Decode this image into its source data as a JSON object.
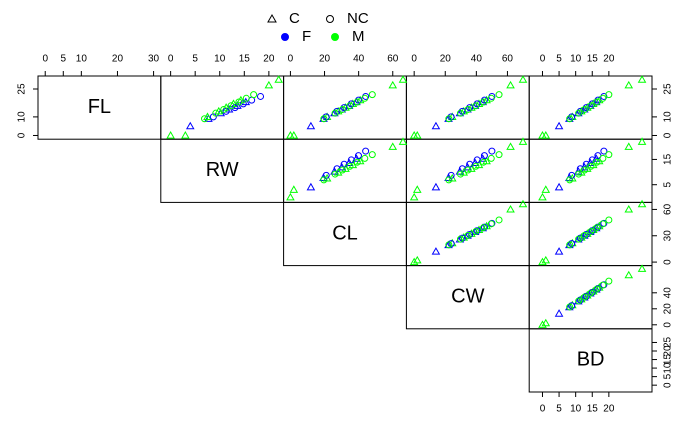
{
  "chart_data": {
    "type": "scatter-matrix",
    "legend": [
      {
        "name": "C",
        "shape": "triangle"
      },
      {
        "name": "NC",
        "shape": "circle"
      },
      {
        "name": "F",
        "color": "#0000ff"
      },
      {
        "name": "M",
        "color": "#00ff00"
      }
    ],
    "species": [
      "C",
      "C",
      "C",
      "C",
      "C",
      "C",
      "C",
      "C",
      "C",
      "C",
      "NC",
      "NC",
      "NC",
      "NC",
      "NC",
      "NC",
      "NC",
      "NC",
      "NC",
      "NC",
      "NC",
      "NC",
      "NC",
      "C",
      "C",
      "C",
      "C",
      "C"
    ],
    "sex": [
      "F",
      "F",
      "F",
      "F",
      "F",
      "M",
      "M",
      "M",
      "M",
      "M",
      "F",
      "F",
      "F",
      "F",
      "F",
      "F",
      "M",
      "M",
      "M",
      "M",
      "M",
      "M",
      "M",
      "M",
      "M",
      "F",
      "M",
      "M"
    ],
    "variables": [
      {
        "name": "FL",
        "lim": [
          -2,
          32
        ],
        "x_ticks": [
          0,
          5,
          10,
          20,
          30
        ],
        "y_ticks": [
          0,
          10,
          25
        ],
        "values": [
          9,
          12,
          14,
          16,
          18,
          10,
          13,
          15,
          17,
          19,
          10,
          13,
          15,
          17,
          19,
          21,
          9,
          12,
          14,
          16,
          18,
          20,
          22,
          0,
          0,
          5,
          27,
          30
        ]
      },
      {
        "name": "RW",
        "lim": [
          -2,
          23
        ],
        "x_ticks": [
          0,
          5,
          10,
          15,
          20
        ],
        "y_ticks": [
          5,
          15
        ],
        "values": [
          7.7,
          10.2,
          11.9,
          13.6,
          15.3,
          7.5,
          9.8,
          11.3,
          12.8,
          14.3,
          8.7,
          11.3,
          13.1,
          14.8,
          16.5,
          18.3,
          6.9,
          9.2,
          10.8,
          12.3,
          13.9,
          15.4,
          16.9,
          0,
          3,
          4,
          20,
          22
        ]
      },
      {
        "name": "CL",
        "lim": [
          -4,
          68
        ],
        "x_ticks": [
          0,
          20,
          40,
          60
        ],
        "y_ticks": [
          0,
          30,
          60
        ],
        "values": [
          19.4,
          25.8,
          30.1,
          34.4,
          38.7,
          21.5,
          28,
          32.3,
          36.6,
          40.9,
          21,
          27.3,
          31.5,
          35.7,
          39.9,
          44.1,
          19.6,
          26.2,
          30.5,
          34.9,
          39.2,
          43.6,
          48,
          0,
          2,
          12,
          60,
          66
        ]
      },
      {
        "name": "CW",
        "lim": [
          -5,
          74
        ],
        "x_ticks": [
          0,
          20,
          40,
          60
        ],
        "y_ticks": [
          0,
          20,
          40
        ],
        "values": [
          22.1,
          29.4,
          34.3,
          39.2,
          44.1,
          24.5,
          31.9,
          36.8,
          41.7,
          46.6,
          23.8,
          31,
          35.7,
          40.5,
          45.2,
          50,
          22.3,
          29.8,
          34.7,
          39.7,
          44.6,
          49.6,
          54.6,
          0,
          2,
          14,
          62,
          70
        ]
      },
      {
        "name": "BD",
        "lim": [
          -4,
          33
        ],
        "x_ticks": [
          0,
          5,
          10,
          15,
          20
        ],
        "y_ticks": [
          0,
          5,
          10,
          15,
          20,
          25
        ],
        "values": [
          8.1,
          10.8,
          12.6,
          14.4,
          16.2,
          9,
          11.7,
          13.5,
          15.3,
          17.1,
          8.8,
          11.4,
          13.2,
          15,
          16.7,
          18.5,
          8.2,
          10.9,
          12.7,
          14.6,
          16.4,
          18.2,
          20,
          0,
          1,
          5,
          26,
          30
        ]
      }
    ]
  }
}
